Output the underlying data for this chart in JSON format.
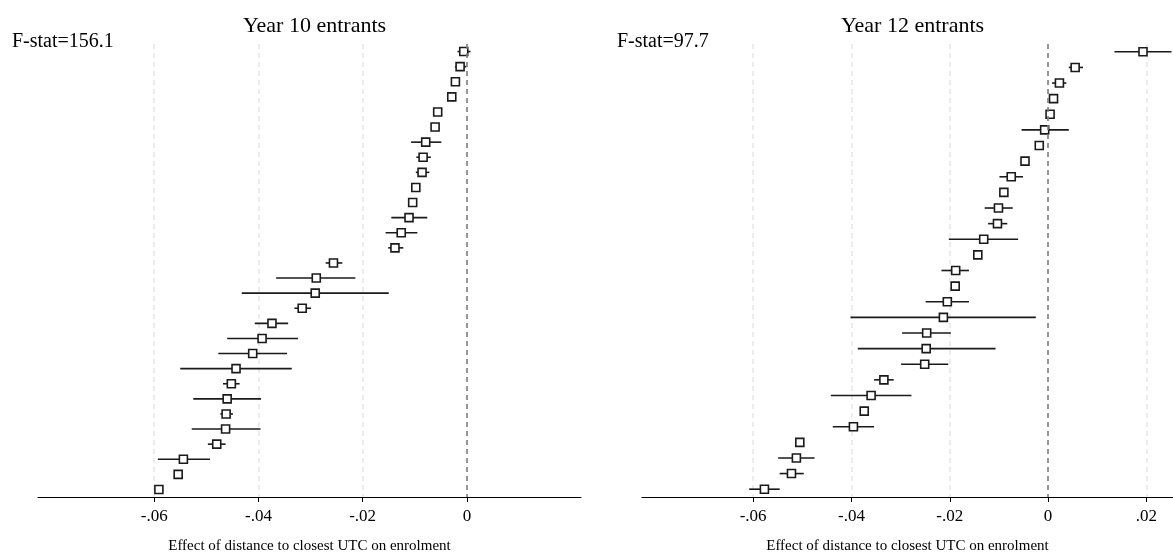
{
  "chart_data": [
    {
      "type": "scatter",
      "orientation": "horizontal",
      "title": "Year 10 entrants",
      "xlabel": "Effect of distance to closest UTC on enrolment",
      "annotations": [
        "F-stat=156.1"
      ],
      "categories": [
        null,
        null,
        null,
        null,
        null,
        null,
        null,
        null,
        null,
        null,
        null,
        null,
        null,
        null,
        null,
        null,
        null,
        null,
        null,
        null,
        null,
        null,
        null,
        null,
        null,
        null,
        null,
        null,
        null,
        null
      ],
      "series": [
        {
          "color": "#1a1a1a",
          "values": [
            -0.0006,
            -0.0013,
            -0.0022,
            -0.0029,
            -0.0056,
            -0.0061,
            -0.0079,
            -0.0084,
            -0.0086,
            -0.0098,
            -0.0104,
            -0.0111,
            -0.0126,
            -0.0138,
            -0.0256,
            -0.0289,
            -0.0291,
            -0.0316,
            -0.0374,
            -0.0393,
            -0.0411,
            -0.0443,
            -0.0452,
            -0.046,
            -0.0462,
            -0.0463,
            -0.048,
            -0.0544,
            -0.0554,
            -0.0591
          ],
          "errors": [
            [
              -0.0018,
              0.0007
            ],
            [
              -0.0023,
              -0.0001
            ],
            null,
            null,
            null,
            null,
            [
              -0.0107,
              -0.0049
            ],
            [
              -0.0097,
              -0.0069
            ],
            [
              -0.0098,
              -0.0072
            ],
            null,
            null,
            [
              -0.0145,
              -0.0076
            ],
            [
              -0.0156,
              -0.0095
            ],
            [
              -0.0151,
              -0.0122
            ],
            [
              -0.0271,
              -0.0239
            ],
            [
              -0.0366,
              -0.0214
            ],
            [
              -0.0432,
              -0.015
            ],
            [
              -0.0331,
              -0.0299
            ],
            [
              -0.0407,
              -0.0343
            ],
            [
              -0.046,
              -0.0324
            ],
            [
              -0.0477,
              -0.0345
            ],
            [
              -0.055,
              -0.0336
            ],
            [
              -0.0468,
              -0.0436
            ],
            [
              -0.0525,
              -0.0395
            ],
            [
              -0.0473,
              -0.0449
            ],
            [
              -0.0528,
              -0.0396
            ],
            [
              -0.0497,
              -0.0463
            ],
            [
              -0.0593,
              -0.0493
            ],
            null,
            null
          ]
        }
      ],
      "marker": "square",
      "xlim": [
        -0.0823,
        0.0219
      ],
      "xticks": [
        {
          "value": -0.06,
          "label": "-.06"
        },
        {
          "value": -0.04,
          "label": "-.04"
        },
        {
          "value": -0.02,
          "label": "-.02"
        },
        0
      ],
      "grid": "x",
      "tick_labels": "x",
      "ref_lines": [
        {
          "axis": "x",
          "value": 0,
          "color": "#808080",
          "line_style": "dashed"
        }
      ]
    },
    {
      "type": "scatter",
      "orientation": "horizontal",
      "title": "Year 12 entrants",
      "xlabel": "Effect of distance to closest UTC on enrolment",
      "annotations": [
        "F-stat=97.7"
      ],
      "categories": [
        null,
        null,
        null,
        null,
        null,
        null,
        null,
        null,
        null,
        null,
        null,
        null,
        null,
        null,
        null,
        null,
        null,
        null,
        null,
        null,
        null,
        null,
        null,
        null,
        null,
        null,
        null,
        null,
        null
      ],
      "series": [
        {
          "color": "#1a1a1a",
          "values": [
            0.0193,
            0.0055,
            0.0023,
            0.0011,
            0.0004,
            -0.0007,
            -0.0018,
            -0.0047,
            -0.0075,
            -0.009,
            -0.0101,
            -0.0103,
            -0.0131,
            -0.0143,
            -0.0188,
            -0.0189,
            -0.0205,
            -0.0213,
            -0.0247,
            -0.0248,
            -0.0251,
            -0.0334,
            -0.036,
            -0.0374,
            -0.0396,
            -0.0505,
            -0.0512,
            -0.0522,
            -0.0577
          ],
          "errors": [
            [
              0.0135,
              0.0251
            ],
            [
              0.0042,
              0.0071
            ],
            [
              0.0008,
              0.0037
            ],
            null,
            null,
            [
              -0.0054,
              0.0042
            ],
            null,
            null,
            [
              -0.0099,
              -0.0051
            ],
            null,
            [
              -0.0129,
              -0.0072
            ],
            [
              -0.0122,
              -0.0083
            ],
            [
              -0.0202,
              -0.0061
            ],
            null,
            [
              -0.0217,
              -0.0161
            ],
            null,
            [
              -0.0249,
              -0.0161
            ],
            [
              -0.0402,
              -0.0025
            ],
            [
              -0.0297,
              -0.0198
            ],
            [
              -0.0387,
              -0.0107
            ],
            [
              -0.0299,
              -0.0203
            ],
            [
              -0.0354,
              -0.0314
            ],
            [
              -0.0442,
              -0.0278
            ],
            null,
            [
              -0.0438,
              -0.0354
            ],
            null,
            [
              -0.0549,
              -0.0475
            ],
            [
              -0.0546,
              -0.0497
            ],
            [
              -0.0608,
              -0.0546
            ]
          ]
        }
      ],
      "marker": "square",
      "xlim": [
        -0.0826,
        0.0254
      ],
      "xticks": [
        {
          "value": -0.06,
          "label": "-.06"
        },
        {
          "value": -0.04,
          "label": "-.04"
        },
        {
          "value": -0.02,
          "label": "-.02"
        },
        0,
        {
          "value": 0.02,
          "label": ".02"
        }
      ],
      "grid": "x",
      "tick_labels": "x",
      "ref_lines": [
        {
          "axis": "x",
          "value": 0,
          "color": "#808080",
          "line_style": "dashed"
        }
      ]
    }
  ]
}
